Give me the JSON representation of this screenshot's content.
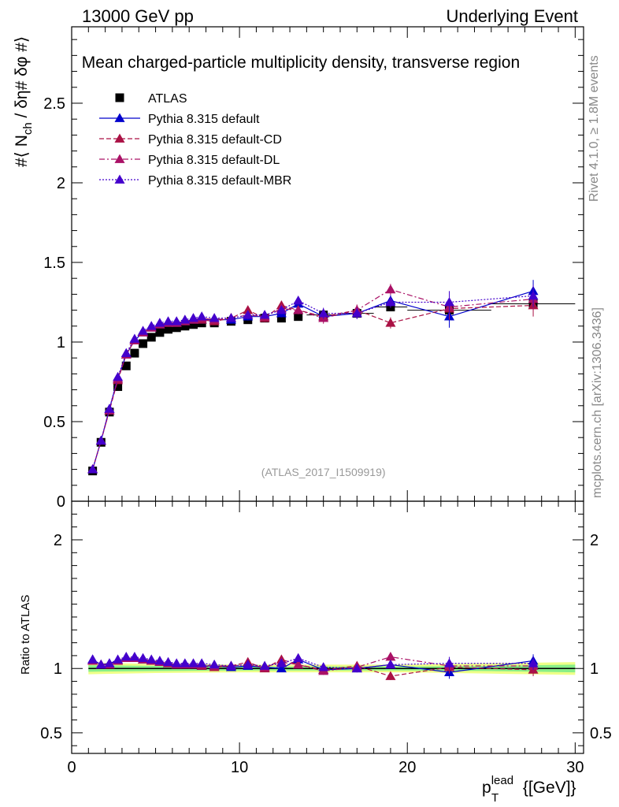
{
  "header": {
    "left": "13000 GeV pp",
    "right": "Underlying Event"
  },
  "side_texts": {
    "rivet": "Rivet 4.1.0, ≥ 1.8M events",
    "mcplots": "mcplots.cern.ch [arXiv:1306.3436]"
  },
  "colors": {
    "atlas": "#000000",
    "default": "#0000cc",
    "cd": "#aa1144",
    "dl": "#aa1166",
    "mbr": "#4400cc",
    "band_outer": "#eeff88",
    "band_inner": "#88ee88"
  },
  "chart_data": [
    {
      "type": "scatter",
      "title": "Mean charged-particle multiplicity density, transverse region",
      "ylabel": "#⟨ N_ch / δη# δφ #⟩",
      "ylabel_main": "#⟨ N",
      "ylabel_sub": "ch",
      "ylabel_rest": " / δη# δφ #⟩",
      "xlim": [
        0,
        30.5
      ],
      "ylim": [
        0,
        2.98
      ],
      "yticks": [
        0,
        0.5,
        1,
        1.5,
        2,
        2.5
      ],
      "ytick_labels": [
        "0",
        "0.5",
        "1",
        "1.5",
        "2",
        "2.5"
      ],
      "annotation": "(ATLAS_2017_I1509919)",
      "x": [
        1.25,
        1.75,
        2.25,
        2.75,
        3.25,
        3.75,
        4.25,
        4.75,
        5.25,
        5.75,
        6.25,
        6.75,
        7.25,
        7.75,
        8.5,
        9.5,
        10.5,
        11.5,
        12.5,
        13.5,
        15.0,
        17.0,
        19.0,
        22.5,
        27.5
      ],
      "series": [
        {
          "name": "ATLAS",
          "marker": "square",
          "values": [
            0.19,
            0.37,
            0.56,
            0.72,
            0.85,
            0.93,
            0.99,
            1.03,
            1.06,
            1.08,
            1.09,
            1.1,
            1.11,
            1.12,
            1.12,
            1.13,
            1.14,
            1.15,
            1.15,
            1.16,
            1.17,
            1.18,
            1.22,
            1.2,
            1.24
          ]
        },
        {
          "name": "Pythia 8.315 default",
          "marker": "triangle",
          "line": "solid",
          "values": [
            0.2,
            0.38,
            0.58,
            0.77,
            0.92,
            1.01,
            1.06,
            1.09,
            1.11,
            1.12,
            1.12,
            1.13,
            1.14,
            1.14,
            1.14,
            1.14,
            1.16,
            1.16,
            1.18,
            1.24,
            1.16,
            1.18,
            1.26,
            1.16,
            1.32
          ]
        },
        {
          "name": "Pythia 8.315 default-CD",
          "marker": "triangle",
          "line": "dashed",
          "values": [
            0.2,
            0.38,
            0.57,
            0.76,
            0.92,
            1.01,
            1.06,
            1.09,
            1.11,
            1.12,
            1.12,
            1.13,
            1.14,
            1.14,
            1.13,
            1.15,
            1.2,
            1.15,
            1.23,
            1.2,
            1.16,
            1.2,
            1.12,
            1.21,
            1.23
          ]
        },
        {
          "name": "Pythia 8.315 default-DL",
          "marker": "triangle",
          "line": "dashdot",
          "values": [
            0.2,
            0.38,
            0.57,
            0.77,
            0.92,
            1.01,
            1.06,
            1.09,
            1.11,
            1.12,
            1.12,
            1.13,
            1.14,
            1.15,
            1.14,
            1.15,
            1.17,
            1.16,
            1.21,
            1.2,
            1.15,
            1.2,
            1.33,
            1.22,
            1.27
          ]
        },
        {
          "name": "Pythia 8.315 default-MBR",
          "marker": "triangle",
          "line": "dotted",
          "values": [
            0.2,
            0.38,
            0.58,
            0.78,
            0.93,
            1.02,
            1.07,
            1.1,
            1.12,
            1.13,
            1.13,
            1.14,
            1.15,
            1.16,
            1.15,
            1.15,
            1.17,
            1.17,
            1.2,
            1.26,
            1.18,
            1.18,
            1.25,
            1.25,
            1.29
          ]
        }
      ],
      "legend": [
        "ATLAS",
        "Pythia 8.315 default",
        "Pythia 8.315 default-CD",
        "Pythia 8.315 default-DL",
        "Pythia 8.315 default-MBR"
      ]
    },
    {
      "type": "scatter",
      "title": "",
      "ylabel": "Ratio to ATLAS",
      "xlabel_main": "p",
      "xlabel_sup": "lead",
      "xlabel_sub": "T",
      "xlabel_rest": " {[GeV]}",
      "xlim": [
        0,
        30.5
      ],
      "ylim": [
        0.34,
        2.3
      ],
      "yticks": [
        0.5,
        1,
        2
      ],
      "ytick_labels": [
        "0.5",
        "1",
        "2"
      ],
      "xticks": [
        0,
        10,
        20,
        30
      ],
      "xtick_labels": [
        "0",
        "10",
        "20",
        "30"
      ],
      "x": [
        1.25,
        1.75,
        2.25,
        2.75,
        3.25,
        3.75,
        4.25,
        4.75,
        5.25,
        5.75,
        6.25,
        6.75,
        7.25,
        7.75,
        8.5,
        9.5,
        10.5,
        11.5,
        12.5,
        13.5,
        15.0,
        17.0,
        19.0,
        22.5,
        27.5
      ],
      "series": [
        {
          "name": "Pythia 8.315 default",
          "values": [
            1.07,
            1.03,
            1.04,
            1.06,
            1.08,
            1.08,
            1.07,
            1.06,
            1.05,
            1.04,
            1.03,
            1.03,
            1.03,
            1.02,
            1.02,
            1.01,
            1.02,
            1.01,
            1.0,
            1.07,
            0.99,
            1.0,
            1.03,
            0.97,
            1.06
          ]
        },
        {
          "name": "Pythia 8.315 default-CD",
          "values": [
            1.06,
            1.03,
            1.03,
            1.06,
            1.08,
            1.08,
            1.07,
            1.06,
            1.05,
            1.04,
            1.03,
            1.03,
            1.03,
            1.02,
            1.01,
            1.02,
            1.05,
            1.0,
            1.07,
            1.03,
            0.99,
            1.02,
            0.94,
            1.01,
            0.99
          ]
        },
        {
          "name": "Pythia 8.315 default-DL",
          "values": [
            1.06,
            1.03,
            1.03,
            1.06,
            1.08,
            1.08,
            1.07,
            1.06,
            1.05,
            1.04,
            1.03,
            1.03,
            1.03,
            1.03,
            1.02,
            1.02,
            1.03,
            1.01,
            1.05,
            1.03,
            0.98,
            1.01,
            1.09,
            1.02,
            1.02
          ]
        },
        {
          "name": "Pythia 8.315 default-MBR",
          "values": [
            1.07,
            1.03,
            1.04,
            1.07,
            1.09,
            1.09,
            1.08,
            1.07,
            1.06,
            1.05,
            1.04,
            1.04,
            1.04,
            1.04,
            1.03,
            1.02,
            1.03,
            1.02,
            1.04,
            1.08,
            1.01,
            1.0,
            1.03,
            1.04,
            1.04
          ]
        }
      ],
      "band": {
        "x": [
          1.0,
          5.0,
          10.0,
          20.0,
          25.0,
          30.0
        ],
        "outer": [
          0.045,
          0.035,
          0.03,
          0.03,
          0.04,
          0.05
        ],
        "inner": [
          0.025,
          0.02,
          0.015,
          0.015,
          0.02,
          0.03
        ]
      }
    }
  ]
}
